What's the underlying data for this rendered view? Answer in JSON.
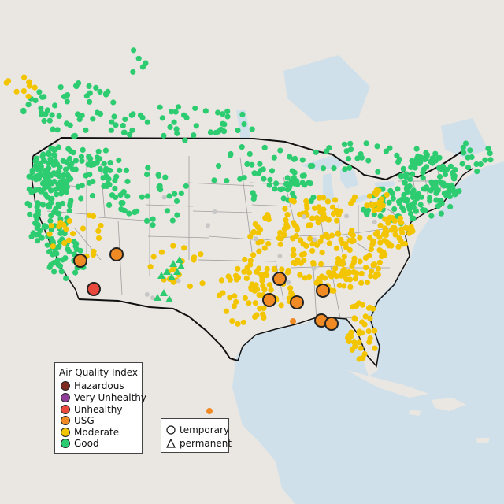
{
  "legend": {
    "title": "Air Quality Index",
    "categories": [
      {
        "label": "Hazardous",
        "color": "#7e2a1e"
      },
      {
        "label": "Very Unhealthy",
        "color": "#8f3f97"
      },
      {
        "label": "Unhealthy",
        "color": "#e8493c"
      },
      {
        "label": "USG",
        "color": "#f08a24"
      },
      {
        "label": "Moderate",
        "color": "#f2c500"
      },
      {
        "label": "Good",
        "color": "#2ecc71"
      }
    ]
  },
  "monitor_types": [
    {
      "label": "temporary",
      "symbol": "circle-icon"
    },
    {
      "label": "permanent",
      "symbol": "triangle-icon"
    }
  ],
  "map_colors": {
    "water": "#cfe0ea",
    "land": "#eae7e2",
    "state_line": "#9e9e9e",
    "border_line": "#111111",
    "no_data": "#c7c7c7"
  }
}
